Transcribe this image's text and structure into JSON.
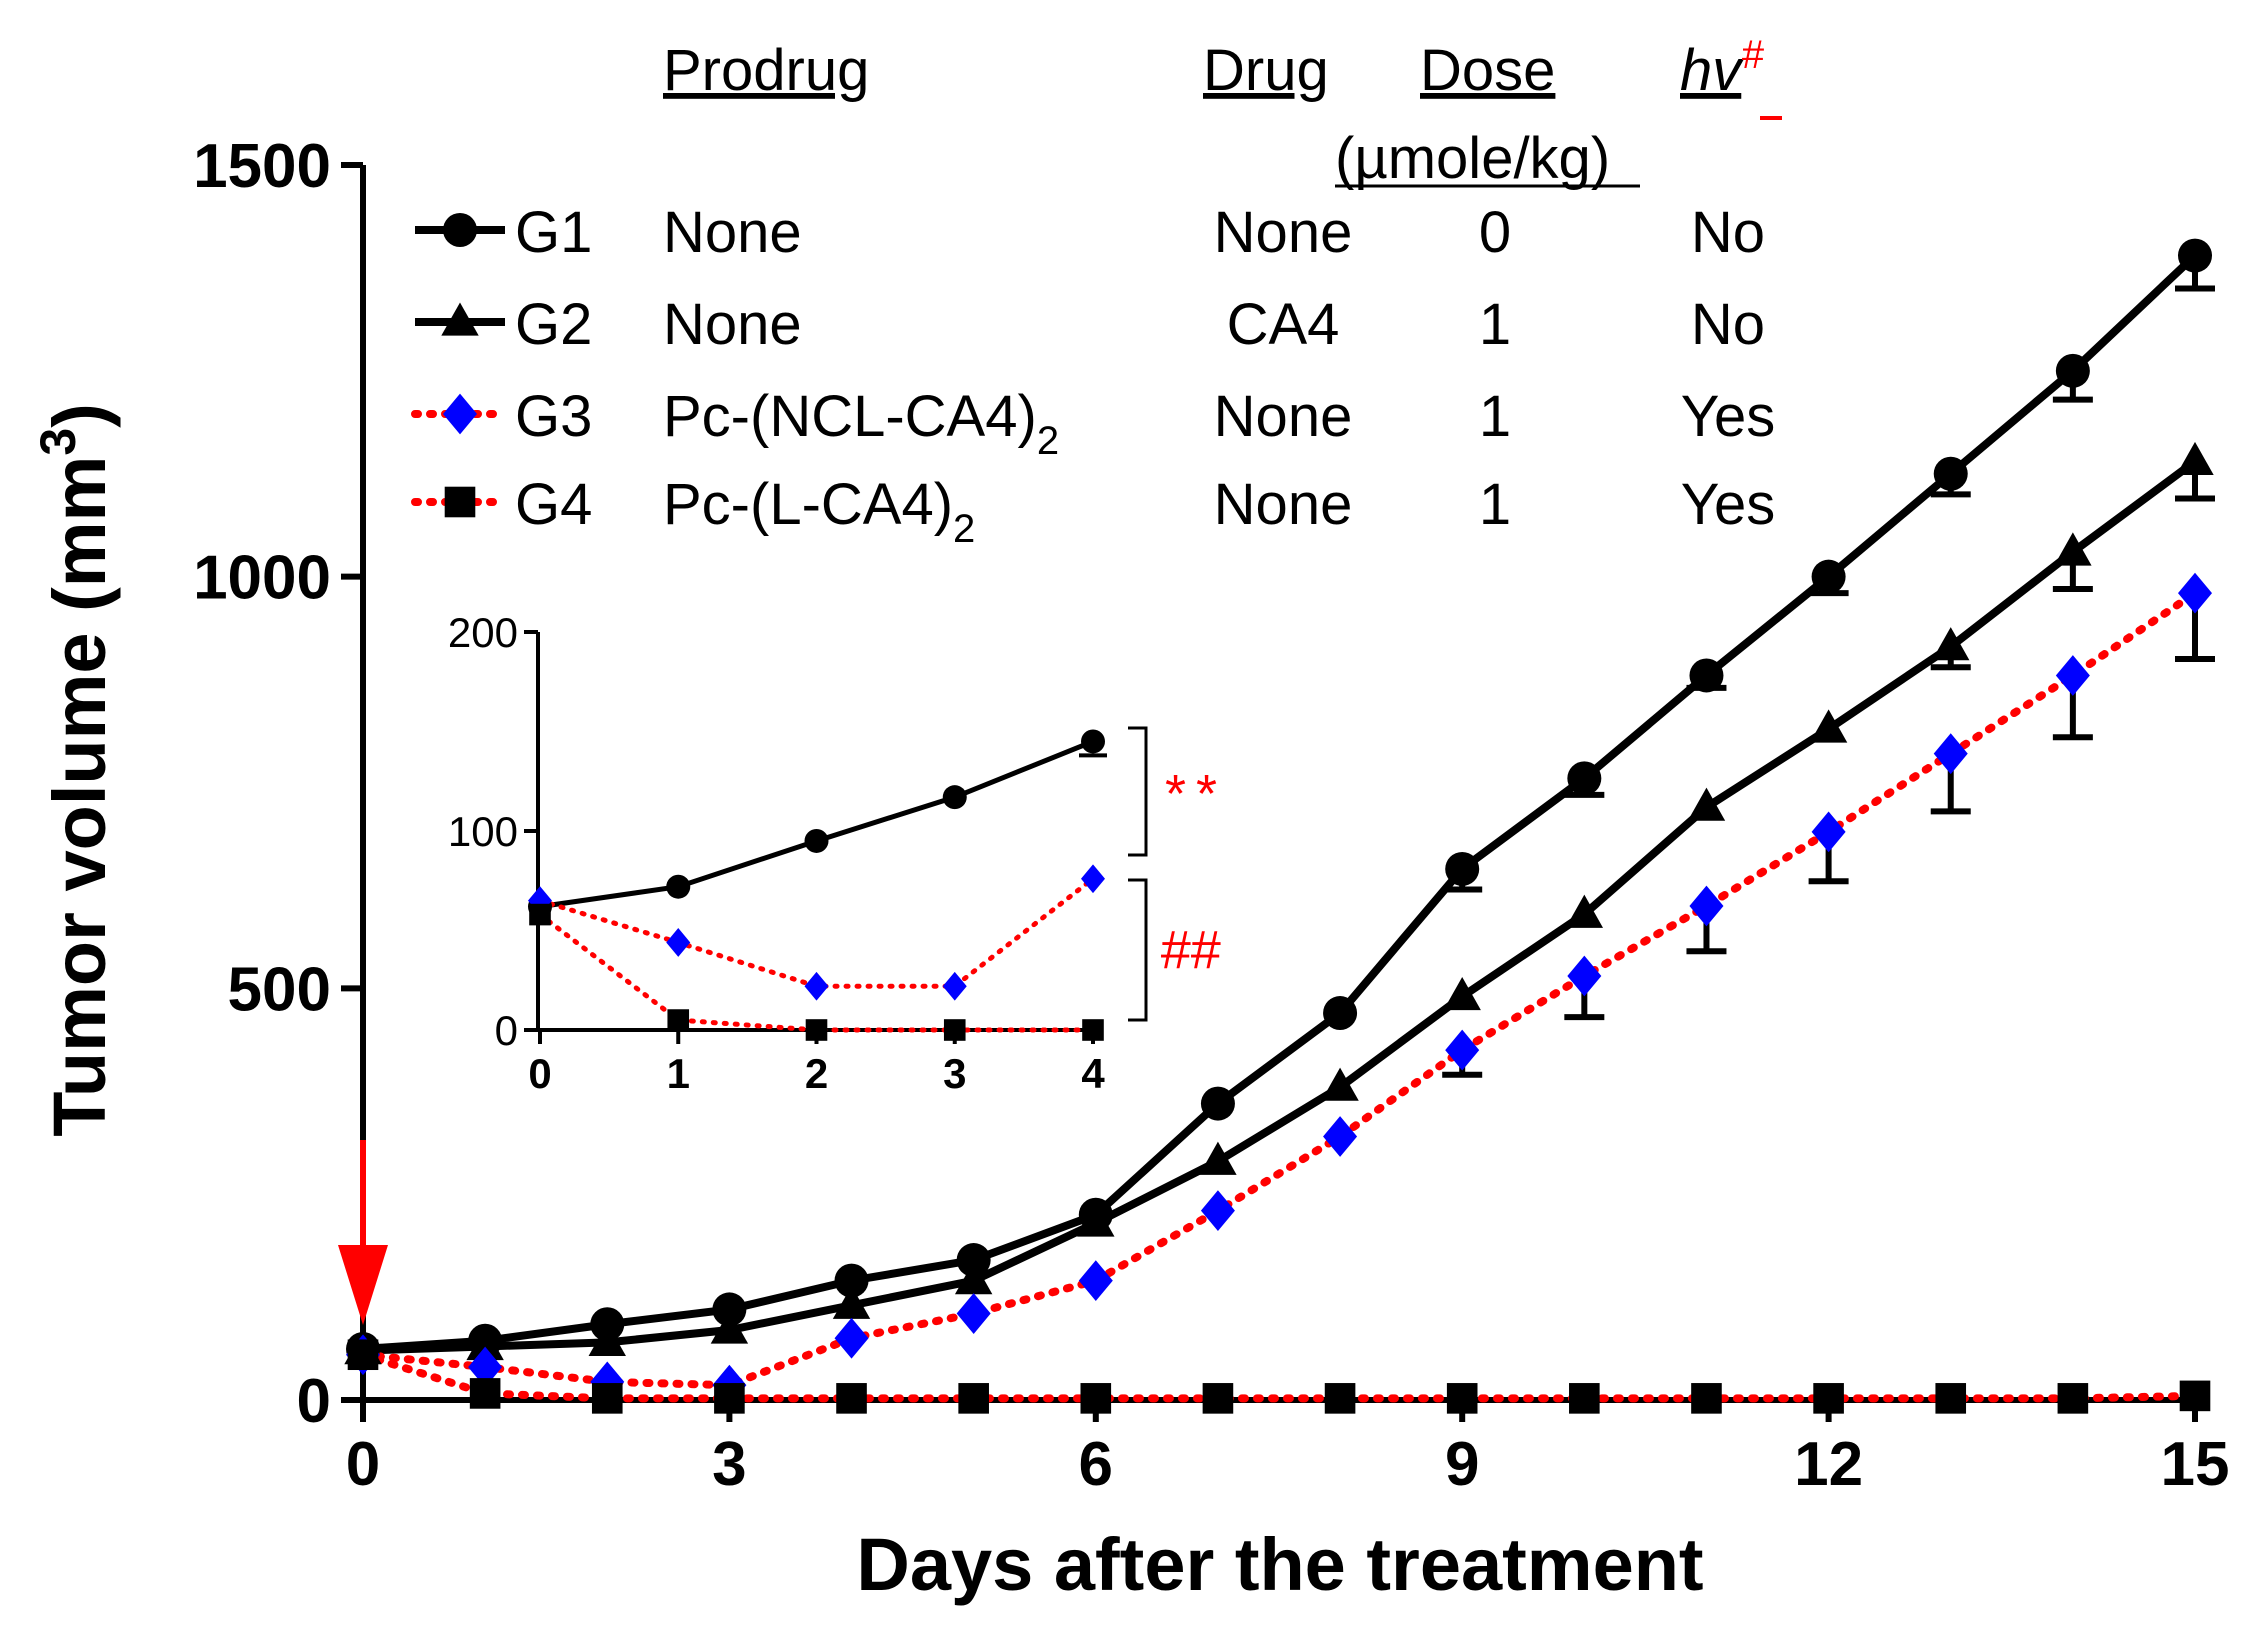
{
  "chart_data": [
    {
      "type": "line",
      "xlabel": "Days after the treatment",
      "ylabel": "Tumor volume (mm",
      "ylabel_sup": "3",
      "ylabel_close": ")",
      "xlim": [
        0,
        15
      ],
      "ylim": [
        0,
        1500
      ],
      "xticks": [
        0,
        3,
        6,
        9,
        12,
        15
      ],
      "yticks": [
        0,
        500,
        1000,
        1500
      ],
      "treatment_arrow_day": 0,
      "series": [
        {
          "name": "G1",
          "marker": "circle",
          "line": "solid",
          "color": "#000000",
          "x": [
            0,
            1,
            2,
            3,
            4,
            5,
            6,
            7,
            8,
            9,
            10,
            11,
            12,
            13,
            14,
            15
          ],
          "values": [
            62,
            72,
            92,
            110,
            145,
            170,
            225,
            360,
            470,
            645,
            755,
            880,
            1000,
            1125,
            1250,
            1390
          ],
          "errors": [
            0,
            0,
            0,
            0,
            0,
            0,
            0,
            0,
            0,
            25,
            20,
            15,
            20,
            25,
            35,
            40
          ]
        },
        {
          "name": "G2",
          "marker": "triangle",
          "line": "solid",
          "color": "#000000",
          "x": [
            0,
            1,
            2,
            3,
            4,
            5,
            6,
            7,
            8,
            9,
            10,
            11,
            12,
            13,
            14,
            15
          ],
          "values": [
            60,
            65,
            70,
            85,
            115,
            145,
            215,
            290,
            380,
            490,
            590,
            720,
            815,
            915,
            1030,
            1140
          ],
          "errors": [
            0,
            0,
            0,
            0,
            0,
            0,
            0,
            0,
            0,
            0,
            0,
            0,
            0,
            25,
            45,
            45
          ]
        },
        {
          "name": "G3",
          "marker": "diamond",
          "line": "dotted",
          "color": "#0000ff",
          "line_color": "#ff0000",
          "x": [
            0,
            1,
            2,
            3,
            4,
            5,
            6,
            7,
            8,
            9,
            10,
            11,
            12,
            13,
            14,
            15
          ],
          "values": [
            55,
            40,
            22,
            18,
            75,
            105,
            145,
            230,
            320,
            425,
            515,
            600,
            690,
            785,
            880,
            980
          ],
          "errors": [
            0,
            0,
            0,
            0,
            0,
            0,
            0,
            0,
            0,
            30,
            50,
            55,
            60,
            70,
            75,
            80
          ]
        },
        {
          "name": "G4",
          "marker": "square",
          "line": "dotted",
          "color": "#000000",
          "line_color": "#ff0000",
          "x": [
            0,
            1,
            2,
            3,
            4,
            5,
            6,
            7,
            8,
            9,
            10,
            11,
            12,
            13,
            14,
            15
          ],
          "values": [
            55,
            8,
            2,
            2,
            2,
            2,
            2,
            2,
            2,
            2,
            2,
            2,
            2,
            2,
            2,
            5
          ],
          "errors": [
            0,
            0,
            0,
            0,
            0,
            0,
            0,
            0,
            0,
            0,
            0,
            0,
            0,
            0,
            0,
            0
          ]
        }
      ],
      "legend": {
        "headers": {
          "prodrug": "Prodrug",
          "drug": "Drug",
          "dose": "Dose",
          "dose_unit": "(µmole/kg)",
          "hv": "hv",
          "hv_mark": "#"
        },
        "rows": [
          {
            "group": "G1",
            "prodrug": "None",
            "prodrug_sub": "",
            "drug": "None",
            "dose": "0",
            "hv": "No"
          },
          {
            "group": "G2",
            "prodrug": "None",
            "prodrug_sub": "",
            "drug": "CA4",
            "dose": "1",
            "hv": "No"
          },
          {
            "group": "G3",
            "prodrug": "Pc-(NCL-CA4)",
            "prodrug_sub": "2",
            "drug": "None",
            "dose": "1",
            "hv": "Yes"
          },
          {
            "group": "G4",
            "prodrug": "Pc-(L-CA4)",
            "prodrug_sub": "2",
            "drug": "None",
            "dose": "1",
            "hv": "Yes"
          }
        ]
      }
    },
    {
      "type": "line",
      "inset": true,
      "xlim": [
        0,
        4
      ],
      "ylim": [
        0,
        200
      ],
      "xticks": [
        0,
        1,
        2,
        3,
        4
      ],
      "yticks": [
        0,
        100,
        200
      ],
      "series": [
        {
          "name": "G1",
          "marker": "circle",
          "line": "solid",
          "x": [
            0,
            1,
            2,
            3,
            4
          ],
          "values": [
            62,
            72,
            95,
            117,
            145
          ]
        },
        {
          "name": "G3",
          "marker": "diamond",
          "line": "dotted",
          "x": [
            0,
            1,
            2,
            3,
            4
          ],
          "values": [
            65,
            44,
            22,
            22,
            76
          ]
        },
        {
          "name": "G4",
          "marker": "square",
          "line": "dotted",
          "x": [
            0,
            1,
            2,
            3,
            4
          ],
          "values": [
            58,
            5,
            0,
            0,
            0
          ]
        }
      ],
      "annotations": [
        {
          "text": "**",
          "color": "#ff0000"
        },
        {
          "text": "##",
          "color": "#ff0000"
        }
      ]
    }
  ]
}
